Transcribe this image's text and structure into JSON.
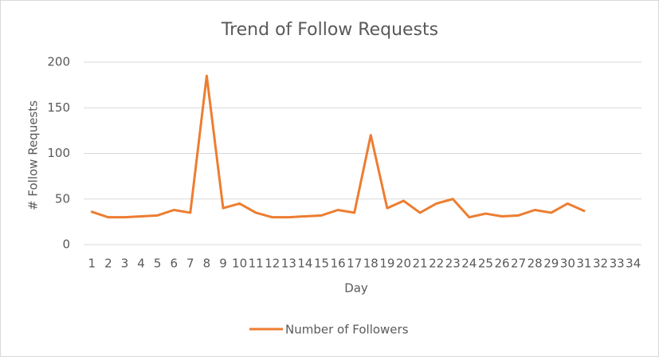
{
  "chart_data": {
    "type": "line",
    "title": "Trend of Follow Requests",
    "x_label": "Day",
    "y_label": "# Follow Requests",
    "categories": [
      "1",
      "2",
      "3",
      "4",
      "5",
      "6",
      "7",
      "8",
      "9",
      "10",
      "11",
      "12",
      "13",
      "14",
      "15",
      "16",
      "17",
      "18",
      "19",
      "20",
      "21",
      "22",
      "23",
      "24",
      "25",
      "26",
      "27",
      "28",
      "29",
      "30",
      "31",
      "32",
      "33",
      "34"
    ],
    "series": [
      {
        "name": "Number of Followers",
        "color": "#ed7d31",
        "values": [
          36,
          30,
          30,
          31,
          32,
          38,
          35,
          185,
          40,
          45,
          35,
          30,
          30,
          31,
          32,
          38,
          35,
          120,
          40,
          48,
          35,
          45,
          50,
          30,
          34,
          31,
          32,
          38,
          35,
          45,
          37,
          null,
          null,
          null
        ]
      }
    ],
    "ylim": [
      0,
      200
    ],
    "yticks": [
      0,
      50,
      100,
      150,
      200
    ],
    "grid": true,
    "legend": "bottom"
  }
}
